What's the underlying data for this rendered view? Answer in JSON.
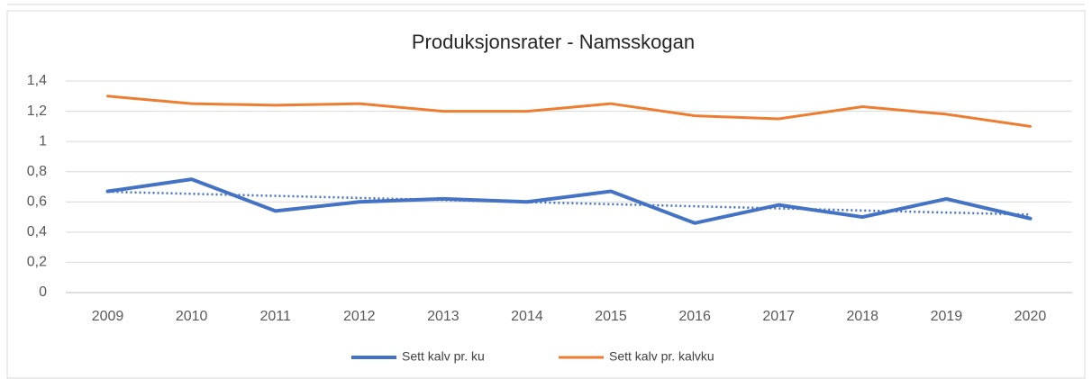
{
  "chart_data": {
    "type": "line",
    "title": "Produksjonsrater - Namsskogan",
    "categories": [
      "2009",
      "2010",
      "2011",
      "2012",
      "2013",
      "2014",
      "2015",
      "2016",
      "2017",
      "2018",
      "2019",
      "2020"
    ],
    "series": [
      {
        "name": "Sett kalv pr. ku",
        "color": "#4472c4",
        "values": [
          0.67,
          0.75,
          0.54,
          0.6,
          0.62,
          0.6,
          0.67,
          0.46,
          0.58,
          0.5,
          0.62,
          0.49
        ],
        "trendline": "linear"
      },
      {
        "name": "Sett kalv pr. kalvku",
        "color": "#ed7d31",
        "values": [
          1.3,
          1.25,
          1.24,
          1.25,
          1.2,
          1.2,
          1.25,
          1.17,
          1.15,
          1.23,
          1.18,
          1.1
        ]
      }
    ],
    "ylim": [
      0,
      1.4
    ],
    "yticks": [
      0,
      {
        "value": 0.2,
        "label": "0,2"
      },
      {
        "value": 0.4,
        "label": "0,4"
      },
      {
        "value": 0.6,
        "label": "0,6"
      },
      {
        "value": 0.8,
        "label": "0,8"
      },
      1,
      {
        "value": 1.2,
        "label": "1,2"
      },
      {
        "value": 1.4,
        "label": "1,4"
      }
    ],
    "grid": true,
    "legend": "bottom"
  }
}
